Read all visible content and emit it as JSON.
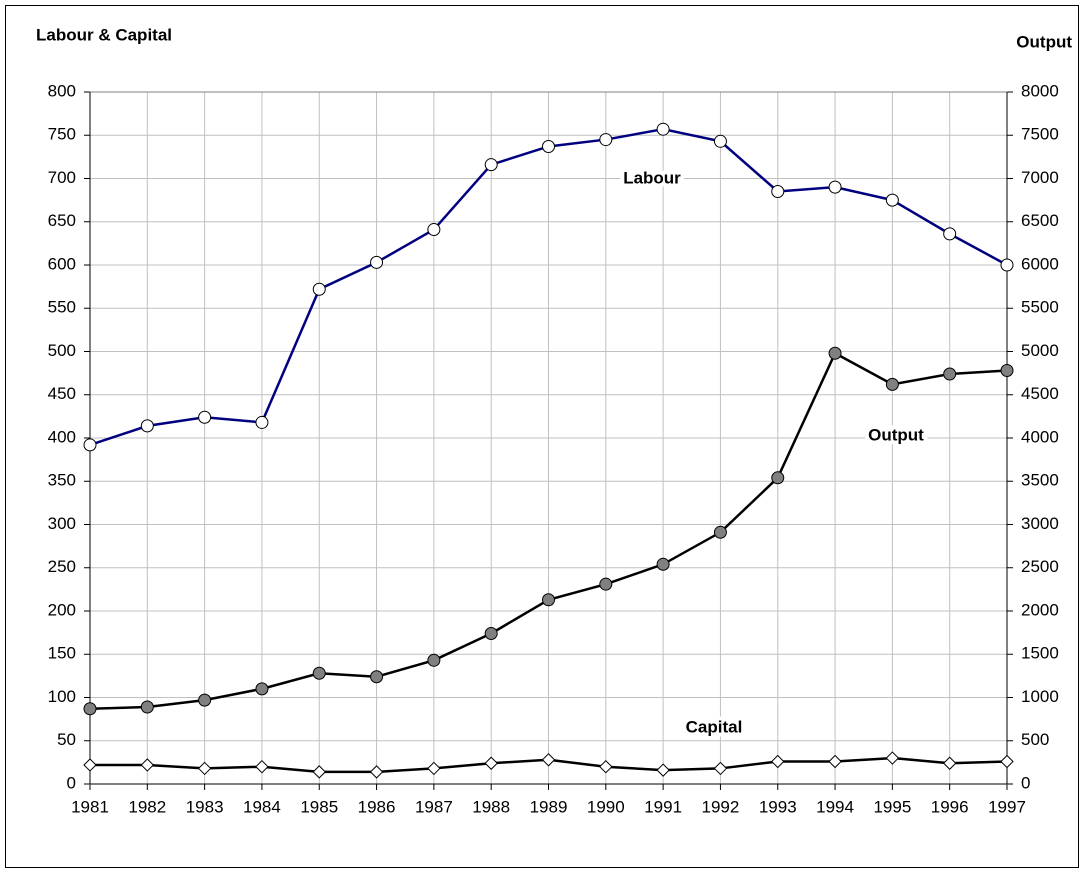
{
  "chart_data": {
    "type": "line",
    "ylabel": "Labour & Capital",
    "y2label": "Output",
    "categories": [
      "1981",
      "1982",
      "1983",
      "1984",
      "1985",
      "1986",
      "1987",
      "1988",
      "1989",
      "1990",
      "1991",
      "1992",
      "1993",
      "1994",
      "1995",
      "1996",
      "1997"
    ],
    "series": [
      {
        "name": "Labour",
        "color": "#000080",
        "marker": "circle",
        "marker_fill": "#ffffff",
        "values": [
          392,
          414,
          424,
          418,
          572,
          603,
          641,
          716,
          737,
          745,
          757,
          743,
          685,
          690,
          675,
          636,
          600
        ]
      },
      {
        "name": "Output",
        "color": "#000000",
        "marker": "circle",
        "marker_fill": "#808080",
        "axis": "y2",
        "values": [
          870,
          890,
          970,
          1100,
          1280,
          1240,
          1430,
          1740,
          2130,
          2310,
          2540,
          2910,
          3540,
          4980,
          4620,
          4740,
          4780
        ]
      },
      {
        "name": "Capital",
        "color": "#000000",
        "marker": "diamond",
        "marker_fill": "#ffffff",
        "values": [
          22,
          22,
          18,
          20,
          14,
          14,
          18,
          24,
          28,
          20,
          16,
          18,
          26,
          26,
          30,
          24,
          26
        ]
      }
    ],
    "ylim": [
      0,
      800
    ],
    "yticks": [
      0,
      50,
      100,
      150,
      200,
      250,
      300,
      350,
      400,
      450,
      500,
      550,
      600,
      650,
      700,
      750,
      800
    ],
    "y2lim": [
      0,
      8000
    ],
    "y2ticks": [
      0,
      500,
      1000,
      1500,
      2000,
      2500,
      3000,
      3500,
      4000,
      4500,
      5000,
      5500,
      6000,
      6500,
      7000,
      7500,
      8000
    ],
    "grid": true
  }
}
